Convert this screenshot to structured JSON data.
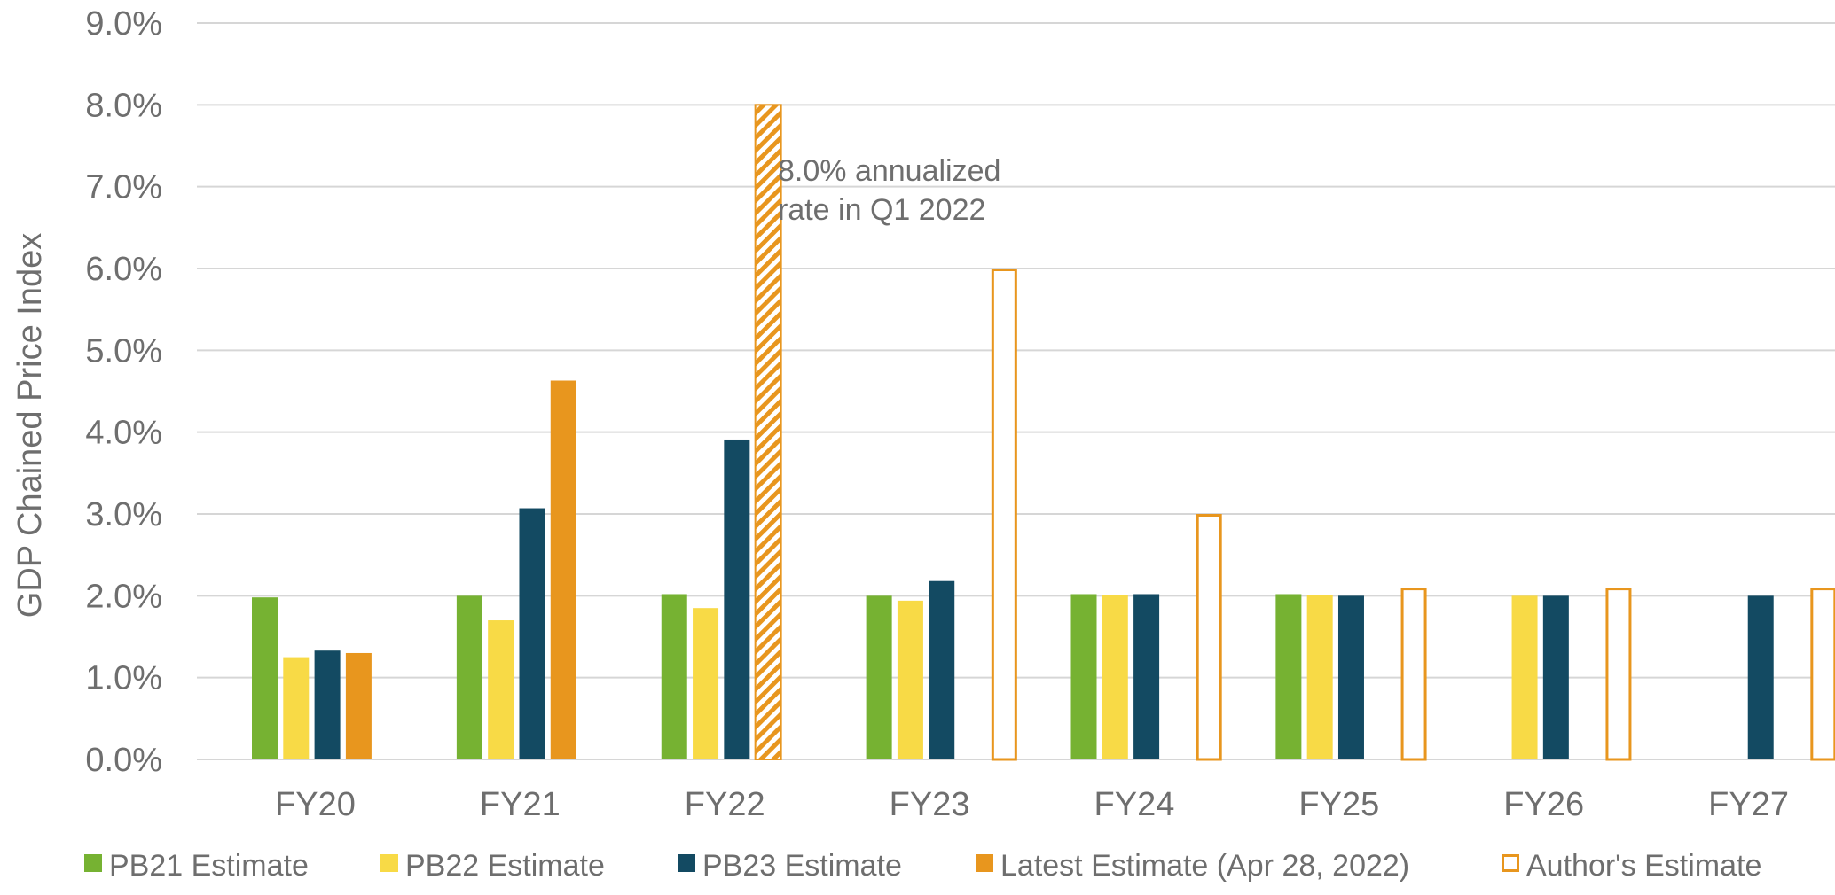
{
  "chart_data": {
    "type": "bar",
    "title": "",
    "xlabel": "",
    "ylabel": "GDP Chained Price Index",
    "ylim": [
      0,
      9
    ],
    "yticks": [
      "0.0%",
      "1.0%",
      "2.0%",
      "3.0%",
      "4.0%",
      "5.0%",
      "6.0%",
      "7.0%",
      "8.0%",
      "9.0%"
    ],
    "grid": true,
    "legend_position": "bottom",
    "categories": [
      "FY20",
      "FY21",
      "FY22",
      "FY23",
      "FY24",
      "FY25",
      "FY26",
      "FY27"
    ],
    "series": [
      {
        "name": "PB21 Estimate",
        "color": "#76b232",
        "style": "solid",
        "values": [
          1.98,
          2.0,
          2.02,
          2.0,
          2.02,
          2.02,
          null,
          null
        ]
      },
      {
        "name": "PB22 Estimate",
        "color": "#f8da46",
        "style": "solid",
        "values": [
          1.25,
          1.7,
          1.85,
          1.94,
          2.01,
          2.01,
          2.0,
          null
        ]
      },
      {
        "name": "PB23 Estimate",
        "color": "#134a62",
        "style": "solid",
        "values": [
          1.33,
          3.07,
          3.91,
          2.18,
          2.02,
          2.0,
          2.0,
          2.0
        ]
      },
      {
        "name": "Latest Estimate (Apr 28, 2022)",
        "color": "#e8961e",
        "style": "solid",
        "values": [
          1.3,
          4.63,
          8.0,
          null,
          null,
          null,
          null,
          null
        ],
        "hatched_index": 2
      },
      {
        "name": "Author's Estimate",
        "color": "#e8961e",
        "style": "outline",
        "values": [
          null,
          null,
          null,
          6.0,
          3.0,
          2.1,
          2.1,
          2.1
        ]
      }
    ],
    "annotations": [
      {
        "lines": [
          "8.0% annualized",
          "rate in Q1 2022"
        ],
        "category": "FY22"
      }
    ]
  }
}
